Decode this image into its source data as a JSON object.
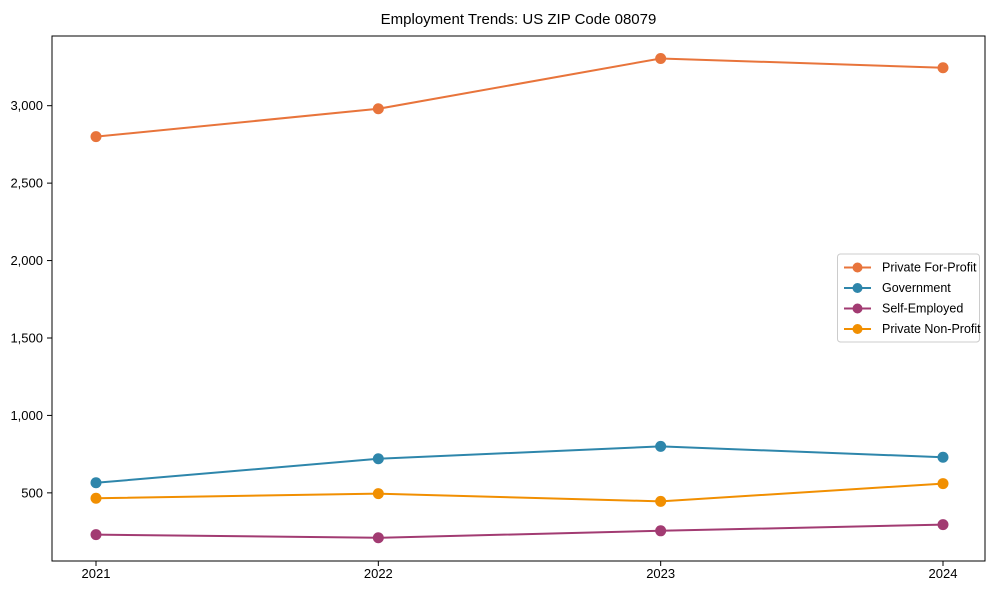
{
  "title": "Employment Trends: US ZIP Code 08079",
  "chart_data": {
    "type": "line",
    "title": "Employment Trends: US ZIP Code 08079",
    "xlabel": "",
    "ylabel": "",
    "categories": [
      "2021",
      "2022",
      "2023",
      "2024"
    ],
    "series": [
      {
        "name": "Private For-Profit",
        "color": "#E8743B",
        "values": [
          2800,
          2980,
          3305,
          3245
        ]
      },
      {
        "name": "Government",
        "color": "#2E86AB",
        "values": [
          565,
          720,
          800,
          730
        ]
      },
      {
        "name": "Self-Employed",
        "color": "#A23B72",
        "values": [
          230,
          210,
          255,
          295
        ]
      },
      {
        "name": "Private Non-Profit",
        "color": "#F18F01",
        "values": [
          465,
          495,
          445,
          560
        ]
      }
    ],
    "ylim": [
      60,
      3450
    ],
    "yticks": [
      500,
      1000,
      1500,
      2000,
      2500,
      3000
    ],
    "ytick_labels": [
      "500",
      "1,000",
      "1,500",
      "2,000",
      "2,500",
      "3,000"
    ],
    "grid": false,
    "marker": "circle",
    "legend_position": "center-right",
    "frame_color": "#000000",
    "legend_border_color": "#cccccc",
    "background_color": "#ffffff"
  }
}
